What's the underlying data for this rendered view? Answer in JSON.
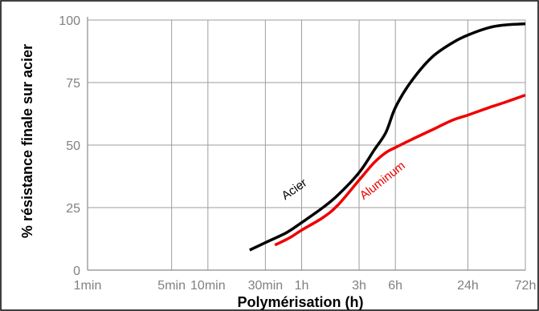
{
  "chart_data": {
    "type": "line",
    "xlabel": "Polymérisation (h)",
    "ylabel": "% résistance finale sur acier",
    "x_scale": "log",
    "x_ticks": [
      "1min",
      "5min",
      "10min",
      "30min",
      "1h",
      "3h",
      "6h",
      "24h",
      "72h"
    ],
    "x_ticks_hours": [
      0.0167,
      0.0833,
      0.1667,
      0.5,
      1,
      3,
      6,
      24,
      72
    ],
    "y_ticks": [
      "0",
      "25",
      "50",
      "75",
      "100"
    ],
    "ylim": [
      0,
      100
    ],
    "grid": true,
    "series": [
      {
        "name": "Acier",
        "color": "#000000",
        "x": [
          0.37,
          0.5,
          0.75,
          1,
          1.5,
          2,
          3,
          4,
          5,
          6,
          8,
          12,
          18,
          24,
          36,
          48,
          72
        ],
        "y": [
          8,
          11,
          15,
          19,
          25,
          30,
          39,
          48,
          55,
          65,
          75,
          85,
          91,
          94,
          97,
          98,
          98.5
        ]
      },
      {
        "name": "Aluminum",
        "color": "#ee0000",
        "x": [
          0.6,
          0.8,
          1,
          1.5,
          2,
          3,
          4,
          5,
          6,
          8,
          12,
          18,
          24,
          36,
          48,
          72
        ],
        "y": [
          10,
          13,
          16,
          21,
          26,
          36,
          43,
          47,
          49,
          52,
          56,
          60,
          62,
          65,
          67,
          70
        ]
      }
    ]
  }
}
